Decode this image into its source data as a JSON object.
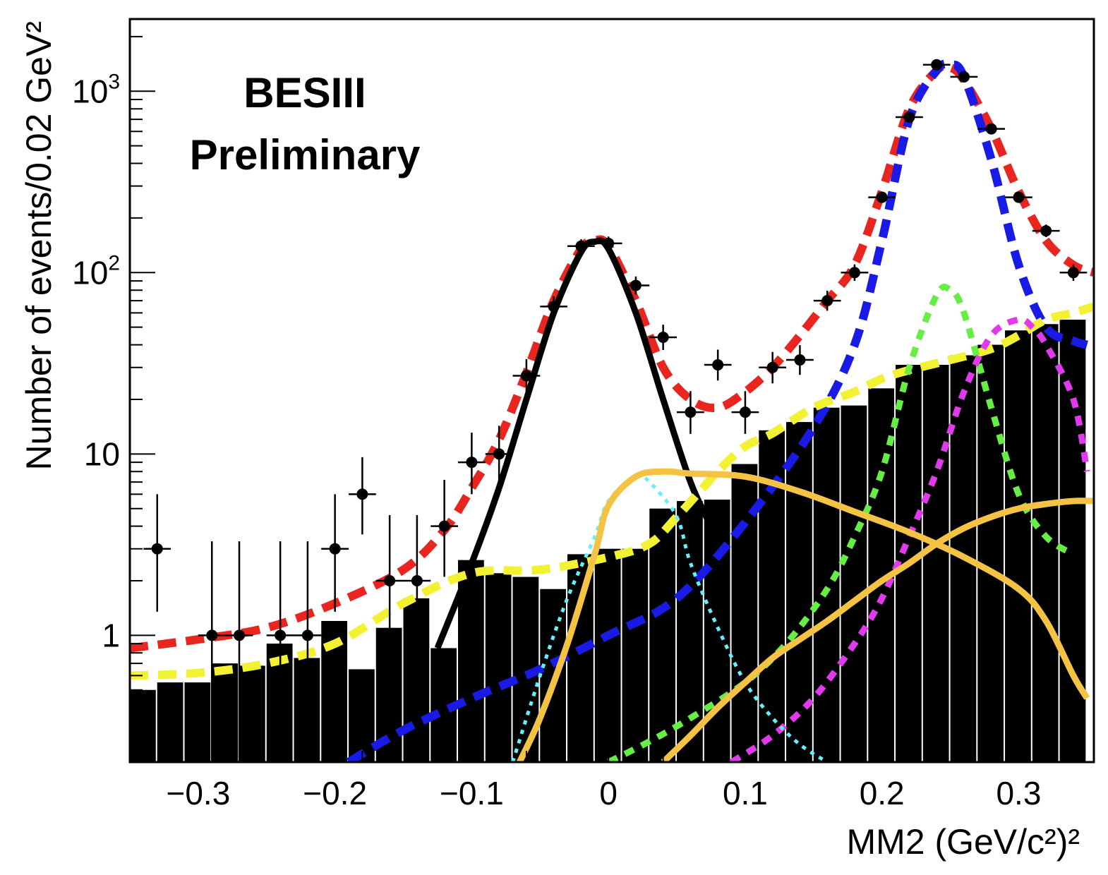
{
  "chart_data": {
    "type": "histogram",
    "title": "",
    "annotations": [
      "BESIII",
      "Preliminary"
    ],
    "xlabel": "MM2 (GeV/c²)²",
    "ylabel": "Number of events/0.02 GeV²",
    "xlim": [
      -0.35,
      0.355
    ],
    "ylim": [
      0.2,
      2500
    ],
    "yscale": "log",
    "x_ticks": [
      {
        "value": -0.3,
        "label": "−0.3"
      },
      {
        "value": -0.2,
        "label": "−0.2"
      },
      {
        "value": -0.1,
        "label": "−0.1"
      },
      {
        "value": 0,
        "label": "0"
      },
      {
        "value": 0.1,
        "label": "0.1"
      },
      {
        "value": 0.2,
        "label": "0.2"
      },
      {
        "value": 0.3,
        "label": "0.3"
      }
    ],
    "y_ticks": [
      {
        "value": 1,
        "label": "1"
      },
      {
        "value": 10,
        "label": "10"
      },
      {
        "value": 100,
        "base": "10",
        "exp": "2"
      },
      {
        "value": 1000,
        "base": "10",
        "exp": "3"
      }
    ],
    "histogram": {
      "name": "background",
      "bin_width": 0.02,
      "bin_edges_start": -0.35,
      "values": [
        0.5,
        0.55,
        0.55,
        0.7,
        0.68,
        0.9,
        0.75,
        1.2,
        0.65,
        1.1,
        1.6,
        0.85,
        2.6,
        2.2,
        2.1,
        1.8,
        2.8,
        3.0,
        3.0,
        5.0,
        5.5,
        5.6,
        8.8,
        13.5,
        15.0,
        18.0,
        18.5,
        23.0,
        31.0,
        31.0,
        35.0,
        40.0,
        48.0,
        52.0,
        55.0
      ]
    },
    "data_points": {
      "name": "data",
      "x": [
        -0.33,
        -0.29,
        -0.27,
        -0.24,
        -0.22,
        -0.2,
        -0.18,
        -0.16,
        -0.14,
        -0.12,
        -0.1,
        -0.08,
        -0.06,
        -0.04,
        -0.02,
        0.0,
        0.02,
        0.04,
        0.06,
        0.08,
        0.1,
        0.12,
        0.14,
        0.16,
        0.18,
        0.2,
        0.22,
        0.24,
        0.26,
        0.28,
        0.3,
        0.32,
        0.34
      ],
      "y": [
        3,
        1,
        1,
        1,
        1,
        3,
        6,
        2,
        2,
        4,
        9,
        10,
        27,
        65,
        140,
        145,
        85,
        44,
        17,
        31,
        17,
        30,
        33,
        70,
        100,
        260,
        720,
        1400,
        1200,
        620,
        260,
        170,
        100
      ],
      "y_err_low": [
        1.65,
        1,
        1,
        1,
        1,
        1.65,
        2.4,
        1.4,
        1.4,
        1.9,
        3,
        3.1,
        5.2,
        8,
        11.8,
        12,
        9.2,
        6.6,
        4.1,
        5.6,
        4.1,
        5.5,
        5.7,
        8.4,
        10,
        16,
        27,
        37,
        35,
        25,
        16,
        13,
        10
      ],
      "y_err_high": [
        3,
        2.3,
        2.3,
        2.3,
        2.3,
        3,
        3.6,
        2.6,
        2.6,
        3.2,
        4.1,
        4.3,
        6.3,
        9,
        12.8,
        13,
        10.2,
        7.6,
        5.2,
        6.6,
        5.2,
        6.5,
        6.8,
        9.4,
        11,
        17,
        28,
        38,
        36,
        26,
        17,
        14,
        11
      ],
      "x_err": 0.01
    },
    "series": [
      {
        "name": "total fit",
        "color": "#e8251e",
        "style": "dashed",
        "x": [
          -0.35,
          -0.3,
          -0.25,
          -0.2,
          -0.15,
          -0.12,
          -0.1,
          -0.08,
          -0.06,
          -0.04,
          -0.02,
          -0.01,
          0.0,
          0.02,
          0.04,
          0.06,
          0.08,
          0.1,
          0.12,
          0.14,
          0.16,
          0.18,
          0.2,
          0.22,
          0.24,
          0.25,
          0.26,
          0.28,
          0.3,
          0.32,
          0.34,
          0.355
        ],
        "y": [
          0.85,
          0.95,
          1.1,
          1.5,
          2.3,
          3.8,
          6.5,
          12,
          28,
          70,
          135,
          150,
          140,
          70,
          30,
          20,
          18,
          22,
          30,
          45,
          70,
          110,
          280,
          800,
          1300,
          1350,
          1150,
          620,
          280,
          150,
          110,
          100
        ]
      },
      {
        "name": "signal",
        "color": "#000000",
        "style": "solid",
        "x": [
          -0.125,
          -0.1,
          -0.08,
          -0.06,
          -0.04,
          -0.02,
          -0.01,
          0.0,
          0.02,
          0.04,
          0.06,
          0.075
        ],
        "y": [
          0.85,
          2.5,
          6.5,
          20,
          60,
          130,
          148,
          135,
          60,
          20,
          7,
          4
        ]
      },
      {
        "name": "blue dashed",
        "color": "#1a1ae6",
        "style": "dashed",
        "x": [
          -0.19,
          -0.15,
          -0.1,
          -0.05,
          0.0,
          0.05,
          0.1,
          0.15,
          0.18,
          0.2,
          0.22,
          0.24,
          0.25,
          0.26,
          0.28,
          0.3,
          0.32,
          0.34,
          0.35
        ],
        "y": [
          0.2,
          0.3,
          0.45,
          0.65,
          1.0,
          1.6,
          4.2,
          14,
          40,
          150,
          700,
          1300,
          1400,
          1200,
          420,
          110,
          50,
          42,
          40
        ]
      },
      {
        "name": "yellow dashed",
        "color": "#f2f233",
        "style": "dashed",
        "x": [
          -0.35,
          -0.3,
          -0.25,
          -0.2,
          -0.15,
          -0.1,
          -0.05,
          0.0,
          0.03,
          0.05,
          0.08,
          0.1,
          0.12,
          0.15,
          0.18,
          0.2,
          0.22,
          0.25,
          0.28,
          0.3,
          0.32,
          0.34,
          0.355
        ],
        "y": [
          0.6,
          0.62,
          0.7,
          0.9,
          1.5,
          2.2,
          2.3,
          2.7,
          3.2,
          4.5,
          8,
          11,
          13,
          18,
          22,
          26,
          29,
          33,
          38,
          45,
          55,
          60,
          65
        ]
      },
      {
        "name": "green dotted",
        "color": "#66ee44",
        "style": "dotted",
        "x": [
          0.0,
          0.03,
          0.06,
          0.1,
          0.13,
          0.16,
          0.18,
          0.2,
          0.22,
          0.24,
          0.25,
          0.26,
          0.28,
          0.3,
          0.32,
          0.34
        ],
        "y": [
          0.2,
          0.26,
          0.35,
          0.55,
          0.9,
          1.8,
          3.5,
          8,
          30,
          75,
          80,
          60,
          18,
          6,
          3.5,
          2.8
        ]
      },
      {
        "name": "magenta dotted",
        "color": "#e13aee",
        "style": "dotted",
        "x": [
          0.09,
          0.12,
          0.15,
          0.18,
          0.2,
          0.22,
          0.24,
          0.26,
          0.28,
          0.3,
          0.31,
          0.32,
          0.34,
          0.35
        ],
        "y": [
          0.2,
          0.28,
          0.45,
          0.9,
          1.6,
          3.5,
          8,
          22,
          45,
          55,
          50,
          40,
          20,
          8
        ]
      },
      {
        "name": "cyan dotted",
        "color": "#66f0ff",
        "style": "dotted",
        "x": [
          -0.07,
          -0.05,
          -0.03,
          -0.01,
          0.0,
          0.02,
          0.03,
          0.05,
          0.06,
          0.08,
          0.1,
          0.12,
          0.14,
          0.16
        ],
        "y": [
          0.2,
          0.6,
          1.6,
          3.5,
          5.5,
          7.5,
          7,
          4.5,
          2.5,
          1.1,
          0.55,
          0.35,
          0.25,
          0.2
        ]
      },
      {
        "name": "orange solid 1",
        "color": "#f5c343",
        "style": "solid",
        "x": [
          -0.065,
          -0.05,
          -0.03,
          -0.01,
          0.0,
          0.02,
          0.04,
          0.06,
          0.1,
          0.14,
          0.18,
          0.22,
          0.26,
          0.3,
          0.32,
          0.34,
          0.35
        ],
        "y": [
          0.2,
          0.35,
          0.9,
          2.8,
          5.2,
          7.5,
          8,
          7.8,
          7.5,
          6.2,
          4.8,
          3.7,
          2.7,
          1.8,
          1.2,
          0.6,
          0.45
        ]
      },
      {
        "name": "orange solid 2",
        "color": "#f5c343",
        "style": "solid",
        "x": [
          0.04,
          0.06,
          0.08,
          0.1,
          0.12,
          0.14,
          0.16,
          0.18,
          0.2,
          0.22,
          0.24,
          0.26,
          0.28,
          0.3,
          0.32,
          0.34,
          0.355
        ],
        "y": [
          0.2,
          0.28,
          0.4,
          0.55,
          0.75,
          0.95,
          1.2,
          1.55,
          2.0,
          2.5,
          3.2,
          3.9,
          4.5,
          5.0,
          5.3,
          5.5,
          5.5
        ]
      }
    ]
  }
}
